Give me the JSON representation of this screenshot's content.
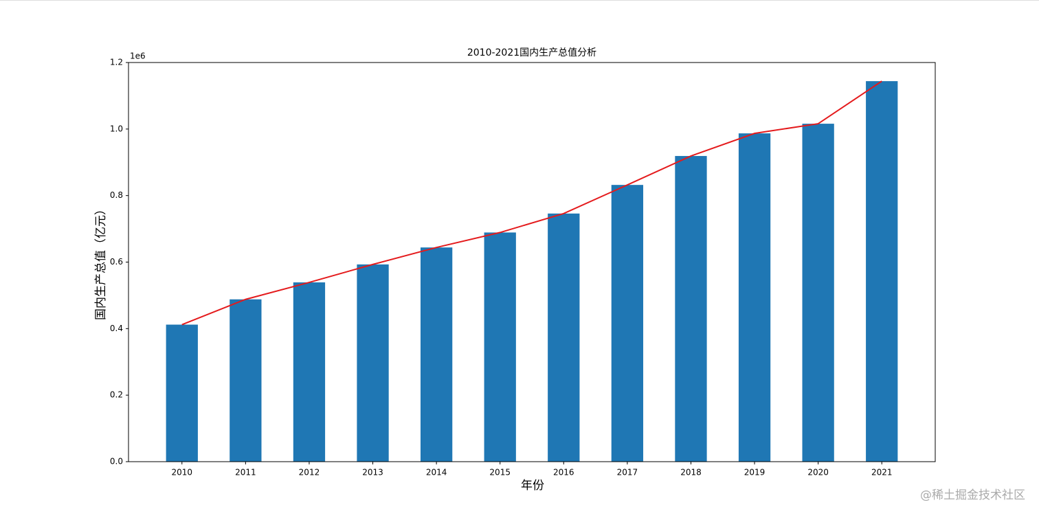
{
  "chart_data": {
    "type": "bar",
    "title": "2010-2021国内生产总值分析",
    "x_label": "年份",
    "y_label": "国内生产总值（亿元）",
    "y_offset_label": "1e6",
    "categories": [
      "2010",
      "2011",
      "2012",
      "2013",
      "2014",
      "2015",
      "2016",
      "2017",
      "2018",
      "2019",
      "2020",
      "2021"
    ],
    "values": [
      0.412,
      0.488,
      0.539,
      0.593,
      0.644,
      0.689,
      0.746,
      0.832,
      0.919,
      0.987,
      1.016,
      1.144
    ],
    "color": "#1f77b4",
    "line": true,
    "line_color": "#e41a1c",
    "ylim": [
      0,
      1.2
    ],
    "yticks": [
      {
        "value": 0,
        "label": "0.0"
      },
      0.2,
      0.4,
      0.6,
      0.8,
      {
        "value": 1,
        "label": "1.0"
      },
      1.2
    ],
    "grid": false
  },
  "watermark": "@稀土掘金技术社区"
}
